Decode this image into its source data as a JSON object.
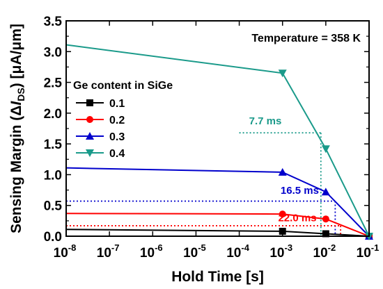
{
  "chart_data": {
    "type": "line",
    "xscale": "log",
    "xlim": [
      1e-08,
      0.1
    ],
    "ylim": [
      0.0,
      3.5
    ],
    "xlabel": "Hold Time [s]",
    "ylabel": {
      "prefix": "Sensing Margin (Δ",
      "italic": "I",
      "subscript": "DS",
      "suffix": ") [μA/μm]"
    },
    "xticks": [
      {
        "value": 1e-08,
        "base": "10",
        "exp": "-8"
      },
      {
        "value": 1e-07,
        "base": "10",
        "exp": "-7"
      },
      {
        "value": 1e-06,
        "base": "10",
        "exp": "-6"
      },
      {
        "value": 1e-05,
        "base": "10",
        "exp": "-5"
      },
      {
        "value": 0.0001,
        "base": "10",
        "exp": "-4"
      },
      {
        "value": 0.001,
        "base": "10",
        "exp": "-3"
      },
      {
        "value": 0.01,
        "base": "10",
        "exp": "-2"
      },
      {
        "value": 0.1,
        "base": "10",
        "exp": "-1"
      }
    ],
    "yticks": [
      "0.0",
      "0.5",
      "1.0",
      "1.5",
      "2.0",
      "2.5",
      "3.0",
      "3.5"
    ],
    "legend_title": "Ge content in SiGe",
    "legend_position": "center-left",
    "series": [
      {
        "name": "0.1",
        "color": "#000000",
        "marker": "square",
        "x": [
          1e-08,
          0.001,
          0.01,
          0.1
        ],
        "y": [
          0.11,
          0.08,
          0.04,
          0.0
        ]
      },
      {
        "name": "0.2",
        "color": "#ff0000",
        "marker": "circle",
        "x": [
          1e-08,
          0.001,
          0.01,
          0.1
        ],
        "y": [
          0.37,
          0.36,
          0.28,
          0.0
        ]
      },
      {
        "name": "0.3",
        "color": "#0000cc",
        "marker": "triangle-up",
        "x": [
          1e-08,
          0.001,
          0.01,
          0.1
        ],
        "y": [
          1.11,
          1.04,
          0.72,
          0.0
        ]
      },
      {
        "name": "0.4",
        "color": "#1a9a8a",
        "marker": "triangle-down",
        "x": [
          1e-08,
          0.001,
          0.01,
          0.1
        ],
        "y": [
          3.11,
          2.65,
          1.42,
          0.0
        ]
      }
    ],
    "annotations": [
      {
        "text": "Temperature = 358 K",
        "color": "#000000"
      },
      {
        "text": "7.7 ms",
        "color": "#1a9a8a",
        "x": 0.0077,
        "y": 1.68,
        "label_x": 0.0004,
        "label_y": 1.82
      },
      {
        "text": "16.5 ms",
        "color": "#0000cc",
        "x": 0.0165,
        "y": 0.57,
        "label_x": 0.0025,
        "label_y": 0.69
      },
      {
        "text": "22.0 ms",
        "color": "#ff0000",
        "x": 0.022,
        "y": 0.17,
        "label_x": 0.0022,
        "label_y": 0.24
      }
    ]
  }
}
